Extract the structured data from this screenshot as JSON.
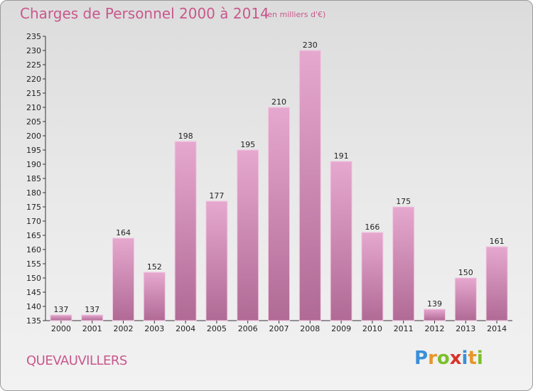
{
  "title": "Charges de Personnel 2000 à 2014",
  "subtitle": "(en milliers d'€)",
  "commune": "QUEVAUVILLERS",
  "logo": {
    "letters": [
      "P",
      "r",
      "o",
      "x",
      "i",
      "t",
      "i"
    ],
    "colors": [
      "#3a8fd8",
      "#e8962a",
      "#7bbf2a",
      "#d8342a",
      "#3a8fd8",
      "#e8962a",
      "#7bbf2a"
    ]
  },
  "colors": {
    "bar_top": "#e6a8cf",
    "bar_bottom": "#b06a95",
    "accent": "#c8588c"
  },
  "chart_data": {
    "type": "bar",
    "categories": [
      "2000",
      "2001",
      "2002",
      "2003",
      "2004",
      "2005",
      "2006",
      "2007",
      "2008",
      "2009",
      "2010",
      "2011",
      "2012",
      "2013",
      "2014"
    ],
    "values": [
      137,
      137,
      164,
      152,
      198,
      177,
      195,
      210,
      230,
      191,
      166,
      175,
      139,
      150,
      161
    ],
    "ylim": [
      135,
      235
    ],
    "yticks": [
      135,
      140,
      145,
      150,
      155,
      160,
      165,
      170,
      175,
      180,
      185,
      190,
      195,
      200,
      205,
      210,
      215,
      220,
      225,
      230,
      235
    ],
    "grid": false,
    "legend": "none"
  }
}
